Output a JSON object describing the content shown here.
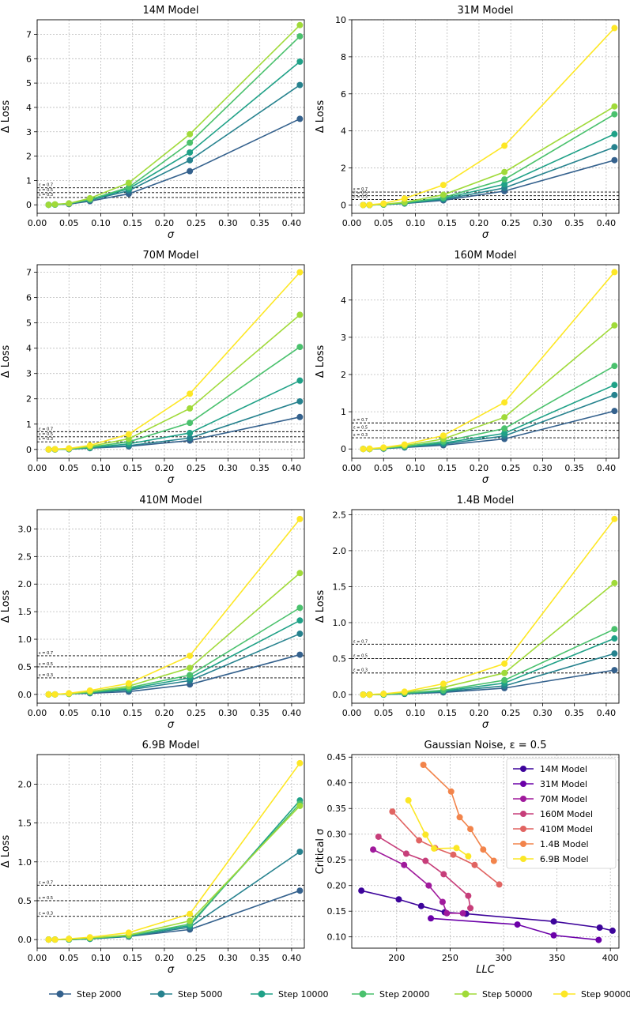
{
  "colors": {
    "series": [
      "#34618d",
      "#26828e",
      "#1fa187",
      "#4ac16d",
      "#a0da39",
      "#fde725"
    ],
    "models": [
      "#3d049b",
      "#6b00a8",
      "#a01a9c",
      "#c73e7a",
      "#e16462",
      "#f2844b",
      "#fbe726"
    ],
    "grid": "#bbbbbb",
    "threshold": "#000000"
  },
  "legend": {
    "series_labels": [
      "Step 2000",
      "Step 5000",
      "Step 10000",
      "Step 20000",
      "Step 50000",
      "Step 90000"
    ]
  },
  "chart_data": [
    {
      "type": "line",
      "title": "14M Model",
      "xlabel": "σ",
      "ylabel": "Δ Loss",
      "x": [
        0.018,
        0.028,
        0.05,
        0.083,
        0.144,
        0.24,
        0.413
      ],
      "xlim": [
        0,
        0.42
      ],
      "ylim": [
        -0.35,
        7.6
      ],
      "xticks": [
        0.0,
        0.05,
        0.1,
        0.15,
        0.2,
        0.25,
        0.3,
        0.35,
        0.4
      ],
      "xtick_labels": [
        "0.00",
        "0.05",
        "0.10",
        "0.15",
        "0.20",
        "0.25",
        "0.30",
        "0.35",
        "0.40"
      ],
      "yticks": [
        0,
        1,
        2,
        3,
        4,
        5,
        6,
        7
      ],
      "ytick_labels": [
        "0",
        "1",
        "2",
        "3",
        "4",
        "5",
        "6",
        "7"
      ],
      "thresholds": [
        0.7,
        0.5,
        0.3
      ],
      "threshold_labels": [
        "ε = 0.7",
        "ε = 0.5",
        "ε = 0.3"
      ],
      "series": [
        {
          "name": "Step 2000",
          "values": [
            0.0,
            0.01,
            0.03,
            0.15,
            0.45,
            1.38,
            3.53
          ]
        },
        {
          "name": "Step 5000",
          "values": [
            0.0,
            0.01,
            0.04,
            0.19,
            0.58,
            1.83,
            4.92
          ]
        },
        {
          "name": "Step 10000",
          "values": [
            0.0,
            0.01,
            0.05,
            0.21,
            0.66,
            2.15,
            5.88
          ]
        },
        {
          "name": "Step 20000",
          "values": [
            0.0,
            0.01,
            0.05,
            0.22,
            0.72,
            2.55,
            6.92
          ]
        },
        {
          "name": "Step 50000",
          "values": [
            0.0,
            0.02,
            0.06,
            0.27,
            0.9,
            2.9,
            7.38
          ]
        }
      ]
    },
    {
      "type": "line",
      "title": "31M Model",
      "xlabel": "σ",
      "ylabel": "Δ Loss",
      "x": [
        0.018,
        0.028,
        0.05,
        0.083,
        0.144,
        0.24,
        0.413
      ],
      "xlim": [
        0,
        0.42
      ],
      "ylim": [
        -0.45,
        10.0
      ],
      "xticks": [
        0.0,
        0.05,
        0.1,
        0.15,
        0.2,
        0.25,
        0.3,
        0.35,
        0.4
      ],
      "xtick_labels": [
        "0.00",
        "0.05",
        "0.10",
        "0.15",
        "0.20",
        "0.25",
        "0.30",
        "0.35",
        "0.40"
      ],
      "yticks": [
        0,
        2,
        4,
        6,
        8,
        10
      ],
      "ytick_labels": [
        "0",
        "2",
        "4",
        "6",
        "8",
        "10"
      ],
      "thresholds": [
        0.7,
        0.5,
        0.3
      ],
      "threshold_labels": [
        "ε = 0.7",
        "ε = 0.5",
        "ε = 0.3"
      ],
      "series": [
        {
          "name": "Step 2000",
          "values": [
            0.0,
            0.0,
            0.02,
            0.08,
            0.25,
            0.75,
            2.42
          ]
        },
        {
          "name": "Step 5000",
          "values": [
            0.0,
            0.0,
            0.02,
            0.09,
            0.3,
            0.92,
            3.12
          ]
        },
        {
          "name": "Step 10000",
          "values": [
            0.0,
            0.0,
            0.02,
            0.1,
            0.35,
            1.12,
            3.83
          ]
        },
        {
          "name": "Step 20000",
          "values": [
            0.0,
            0.0,
            0.03,
            0.12,
            0.4,
            1.38,
            4.9
          ]
        },
        {
          "name": "Step 50000",
          "values": [
            0.0,
            0.0,
            0.04,
            0.15,
            0.55,
            1.78,
            5.32
          ]
        },
        {
          "name": "Step 90000",
          "values": [
            0.0,
            0.01,
            0.08,
            0.35,
            1.08,
            3.2,
            9.55
          ]
        }
      ]
    },
    {
      "type": "line",
      "title": "70M Model",
      "xlabel": "σ",
      "ylabel": "Δ Loss",
      "x": [
        0.018,
        0.028,
        0.05,
        0.083,
        0.144,
        0.24,
        0.413
      ],
      "xlim": [
        0,
        0.42
      ],
      "ylim": [
        -0.35,
        7.3
      ],
      "xticks": [
        0.0,
        0.05,
        0.1,
        0.15,
        0.2,
        0.25,
        0.3,
        0.35,
        0.4
      ],
      "xtick_labels": [
        "0.00",
        "0.05",
        "0.10",
        "0.15",
        "0.20",
        "0.25",
        "0.30",
        "0.35",
        "0.40"
      ],
      "yticks": [
        0,
        1,
        2,
        3,
        4,
        5,
        6,
        7
      ],
      "ytick_labels": [
        "0",
        "1",
        "2",
        "3",
        "4",
        "5",
        "6",
        "7"
      ],
      "thresholds": [
        0.7,
        0.5,
        0.3
      ],
      "threshold_labels": [
        "ε = 0.7",
        "ε = 0.5",
        "ε = 0.3"
      ],
      "series": [
        {
          "name": "Step 2000",
          "values": [
            0.0,
            0.0,
            0.01,
            0.05,
            0.12,
            0.35,
            1.28
          ]
        },
        {
          "name": "Step 5000",
          "values": [
            0.0,
            0.0,
            0.01,
            0.06,
            0.15,
            0.45,
            1.9
          ]
        },
        {
          "name": "Step 10000",
          "values": [
            0.0,
            0.0,
            0.02,
            0.07,
            0.22,
            0.65,
            2.72
          ]
        },
        {
          "name": "Step 20000",
          "values": [
            0.0,
            0.0,
            0.02,
            0.09,
            0.3,
            1.05,
            4.05
          ]
        },
        {
          "name": "Step 50000",
          "values": [
            0.0,
            0.01,
            0.03,
            0.12,
            0.42,
            1.62,
            5.32
          ]
        },
        {
          "name": "Step 90000",
          "values": [
            0.0,
            0.01,
            0.04,
            0.16,
            0.6,
            2.2,
            7.0
          ]
        }
      ]
    },
    {
      "type": "line",
      "title": "160M Model",
      "xlabel": "σ",
      "ylabel": "Δ Loss",
      "x": [
        0.018,
        0.028,
        0.05,
        0.083,
        0.144,
        0.24,
        0.413
      ],
      "xlim": [
        0,
        0.42
      ],
      "ylim": [
        -0.25,
        4.95
      ],
      "xticks": [
        0.0,
        0.05,
        0.1,
        0.15,
        0.2,
        0.25,
        0.3,
        0.35,
        0.4
      ],
      "xtick_labels": [
        "0.00",
        "0.05",
        "0.10",
        "0.15",
        "0.20",
        "0.25",
        "0.30",
        "0.35",
        "0.40"
      ],
      "yticks": [
        0,
        1,
        2,
        3,
        4
      ],
      "ytick_labels": [
        "0",
        "1",
        "2",
        "3",
        "4"
      ],
      "thresholds": [
        0.7,
        0.5,
        0.3
      ],
      "threshold_labels": [
        "ε = 0.7",
        "ε = 0.5",
        "ε = 0.3"
      ],
      "series": [
        {
          "name": "Step 2000",
          "values": [
            0.0,
            0.0,
            0.01,
            0.04,
            0.1,
            0.27,
            1.02
          ]
        },
        {
          "name": "Step 5000",
          "values": [
            0.0,
            0.0,
            0.01,
            0.05,
            0.13,
            0.35,
            1.45
          ]
        },
        {
          "name": "Step 10000",
          "values": [
            0.0,
            0.0,
            0.02,
            0.06,
            0.16,
            0.42,
            1.72
          ]
        },
        {
          "name": "Step 20000",
          "values": [
            0.0,
            0.0,
            0.02,
            0.07,
            0.2,
            0.55,
            2.23
          ]
        },
        {
          "name": "Step 50000",
          "values": [
            0.0,
            0.0,
            0.03,
            0.09,
            0.27,
            0.85,
            3.32
          ]
        },
        {
          "name": "Step 90000",
          "values": [
            0.0,
            0.01,
            0.04,
            0.12,
            0.36,
            1.25,
            4.75
          ]
        }
      ]
    },
    {
      "type": "line",
      "title": "410M Model",
      "xlabel": "σ",
      "ylabel": "Δ Loss",
      "x": [
        0.018,
        0.028,
        0.05,
        0.083,
        0.144,
        0.24,
        0.413
      ],
      "xlim": [
        0,
        0.42
      ],
      "ylim": [
        -0.16,
        3.35
      ],
      "xticks": [
        0.0,
        0.05,
        0.1,
        0.15,
        0.2,
        0.25,
        0.3,
        0.35,
        0.4
      ],
      "xtick_labels": [
        "0.00",
        "0.05",
        "0.10",
        "0.15",
        "0.20",
        "0.25",
        "0.30",
        "0.35",
        "0.40"
      ],
      "yticks": [
        0,
        0.5,
        1.0,
        1.5,
        2.0,
        2.5,
        3.0
      ],
      "ytick_labels": [
        "0.0",
        "0.5",
        "1.0",
        "1.5",
        "2.0",
        "2.5",
        "3.0"
      ],
      "thresholds": [
        0.7,
        0.5,
        0.3
      ],
      "threshold_labels": [
        "ε = 0.7",
        "ε = 0.5",
        "ε = 0.3"
      ],
      "series": [
        {
          "name": "Step 2000",
          "values": [
            0.0,
            0.0,
            0.01,
            0.02,
            0.05,
            0.18,
            0.72
          ]
        },
        {
          "name": "Step 5000",
          "values": [
            0.0,
            0.0,
            0.01,
            0.03,
            0.08,
            0.25,
            1.1
          ]
        },
        {
          "name": "Step 10000",
          "values": [
            0.0,
            0.0,
            0.01,
            0.03,
            0.1,
            0.3,
            1.34
          ]
        },
        {
          "name": "Step 20000",
          "values": [
            0.0,
            0.0,
            0.01,
            0.04,
            0.12,
            0.35,
            1.57
          ]
        },
        {
          "name": "Step 50000",
          "values": [
            0.0,
            0.0,
            0.01,
            0.05,
            0.15,
            0.48,
            2.2
          ]
        },
        {
          "name": "Step 90000",
          "values": [
            0.0,
            0.0,
            0.02,
            0.07,
            0.2,
            0.7,
            3.18
          ]
        }
      ]
    },
    {
      "type": "line",
      "title": "1.4B Model",
      "xlabel": "σ",
      "ylabel": "Δ Loss",
      "x": [
        0.018,
        0.028,
        0.05,
        0.083,
        0.144,
        0.24,
        0.413
      ],
      "xlim": [
        0,
        0.42
      ],
      "ylim": [
        -0.12,
        2.57
      ],
      "xticks": [
        0.0,
        0.05,
        0.1,
        0.15,
        0.2,
        0.25,
        0.3,
        0.35,
        0.4
      ],
      "xtick_labels": [
        "0.00",
        "0.05",
        "0.10",
        "0.15",
        "0.20",
        "0.25",
        "0.30",
        "0.35",
        "0.40"
      ],
      "yticks": [
        0,
        0.5,
        1.0,
        1.5,
        2.0,
        2.5
      ],
      "ytick_labels": [
        "0.0",
        "0.5",
        "1.0",
        "1.5",
        "2.0",
        "2.5"
      ],
      "thresholds": [
        0.7,
        0.5,
        0.3
      ],
      "threshold_labels": [
        "ε = 0.7",
        "ε = 0.5",
        "ε = 0.3"
      ],
      "series": [
        {
          "name": "Step 2000",
          "values": [
            0.0,
            0.0,
            0.0,
            0.01,
            0.03,
            0.09,
            0.34
          ]
        },
        {
          "name": "Step 5000",
          "values": [
            0.0,
            0.0,
            0.0,
            0.01,
            0.04,
            0.12,
            0.57
          ]
        },
        {
          "name": "Step 10000",
          "values": [
            0.0,
            0.0,
            0.0,
            0.02,
            0.05,
            0.16,
            0.78
          ]
        },
        {
          "name": "Step 20000",
          "values": [
            0.0,
            0.0,
            0.0,
            0.02,
            0.06,
            0.2,
            0.91
          ]
        },
        {
          "name": "Step 50000",
          "values": [
            0.0,
            0.0,
            0.01,
            0.03,
            0.1,
            0.3,
            1.55
          ]
        },
        {
          "name": "Step 90000",
          "values": [
            0.0,
            0.0,
            0.01,
            0.04,
            0.15,
            0.43,
            2.44
          ]
        }
      ]
    },
    {
      "type": "line",
      "title": "6.9B Model",
      "xlabel": "σ",
      "ylabel": "Δ Loss",
      "x": [
        0.018,
        0.028,
        0.05,
        0.083,
        0.144,
        0.24,
        0.413
      ],
      "xlim": [
        0,
        0.42
      ],
      "ylim": [
        -0.11,
        2.38
      ],
      "xticks": [
        0.0,
        0.05,
        0.1,
        0.15,
        0.2,
        0.25,
        0.3,
        0.35,
        0.4
      ],
      "xtick_labels": [
        "0.00",
        "0.05",
        "0.10",
        "0.15",
        "0.20",
        "0.25",
        "0.30",
        "0.35",
        "0.40"
      ],
      "yticks": [
        0,
        0.5,
        1.0,
        1.5,
        2.0
      ],
      "ytick_labels": [
        "0.0",
        "0.5",
        "1.0",
        "1.5",
        "2.0"
      ],
      "thresholds": [
        0.7,
        0.5,
        0.3
      ],
      "threshold_labels": [
        "ε = 0.7",
        "ε = 0.5",
        "ε = 0.3"
      ],
      "series": [
        {
          "name": "Step 2000",
          "values": [
            0.0,
            0.0,
            0.0,
            0.01,
            0.04,
            0.13,
            0.63
          ]
        },
        {
          "name": "Step 5000",
          "values": [
            0.0,
            0.0,
            0.0,
            0.01,
            0.04,
            0.16,
            1.13
          ]
        },
        {
          "name": "Step 10000",
          "values": [
            0.0,
            0.0,
            0.0,
            0.01,
            0.05,
            0.18,
            1.79
          ]
        },
        {
          "name": "Step 20000",
          "values": [
            0.0,
            0.0,
            0.0,
            0.02,
            0.05,
            0.2,
            1.75
          ]
        },
        {
          "name": "Step 50000",
          "values": [
            0.0,
            0.0,
            0.01,
            0.02,
            0.06,
            0.24,
            1.72
          ]
        },
        {
          "name": "Step 90000",
          "values": [
            0.0,
            0.0,
            0.01,
            0.03,
            0.09,
            0.33,
            2.27
          ]
        }
      ]
    },
    {
      "type": "line",
      "title": "Gaussian Noise, ε = 0.5",
      "xlabel": "LLC",
      "ylabel": "Critical σ",
      "xlim": [
        158,
        408
      ],
      "ylim": [
        0.078,
        0.455
      ],
      "xticks": [
        200,
        250,
        300,
        350,
        400
      ],
      "xtick_labels": [
        "200",
        "250",
        "300",
        "350",
        "400"
      ],
      "yticks": [
        0.1,
        0.15,
        0.2,
        0.25,
        0.3,
        0.35,
        0.4,
        0.45
      ],
      "ytick_labels": [
        "0.10",
        "0.15",
        "0.20",
        "0.25",
        "0.30",
        "0.35",
        "0.40",
        "0.45"
      ],
      "legend_position": "top-right",
      "series": [
        {
          "name": "14M Model",
          "x": [
            167,
            202,
            223,
            245,
            265,
            347,
            390,
            402
          ],
          "y": [
            0.19,
            0.173,
            0.16,
            0.148,
            0.145,
            0.13,
            0.118,
            0.112
          ]
        },
        {
          "name": "31M Model",
          "x": [
            232,
            313,
            347,
            389
          ],
          "y": [
            0.136,
            0.124,
            0.103,
            0.094
          ]
        },
        {
          "name": "70M Model",
          "x": [
            178,
            207,
            230,
            243,
            247,
            262
          ],
          "y": [
            0.27,
            0.24,
            0.2,
            0.168,
            0.146,
            0.146
          ]
        },
        {
          "name": "160M Model",
          "x": [
            183,
            209,
            227,
            244,
            267,
            269
          ],
          "y": [
            0.295,
            0.262,
            0.248,
            0.222,
            0.18,
            0.156
          ]
        },
        {
          "name": "410M Model",
          "x": [
            196,
            221,
            236,
            253,
            273,
            296
          ],
          "y": [
            0.344,
            0.288,
            0.273,
            0.26,
            0.24,
            0.202
          ]
        },
        {
          "name": "1.4B Model",
          "x": [
            225,
            251,
            259,
            269,
            281,
            291
          ],
          "y": [
            0.435,
            0.383,
            0.333,
            0.31,
            0.27,
            0.248
          ]
        },
        {
          "name": "6.9B Model",
          "x": [
            211,
            227,
            235,
            256,
            267
          ],
          "y": [
            0.366,
            0.299,
            0.272,
            0.273,
            0.257
          ]
        }
      ]
    }
  ]
}
